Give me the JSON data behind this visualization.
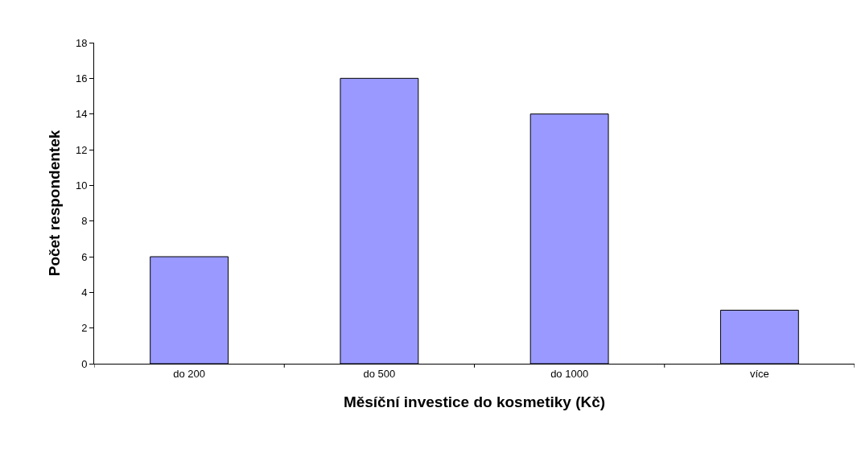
{
  "chart_data": {
    "type": "bar",
    "xlabel": "Měsíční investice do kosmetiky (Kč)",
    "ylabel": "Počet respondentek",
    "categories": [
      "do 200",
      "do 500",
      "do 1000",
      "více"
    ],
    "values": [
      6,
      16,
      14,
      3
    ],
    "color": "#9999ff",
    "ylim": [
      0,
      18
    ],
    "yticks": [
      0,
      2,
      4,
      6,
      8,
      10,
      12,
      14,
      16,
      18
    ],
    "grid": false,
    "legend": false
  }
}
